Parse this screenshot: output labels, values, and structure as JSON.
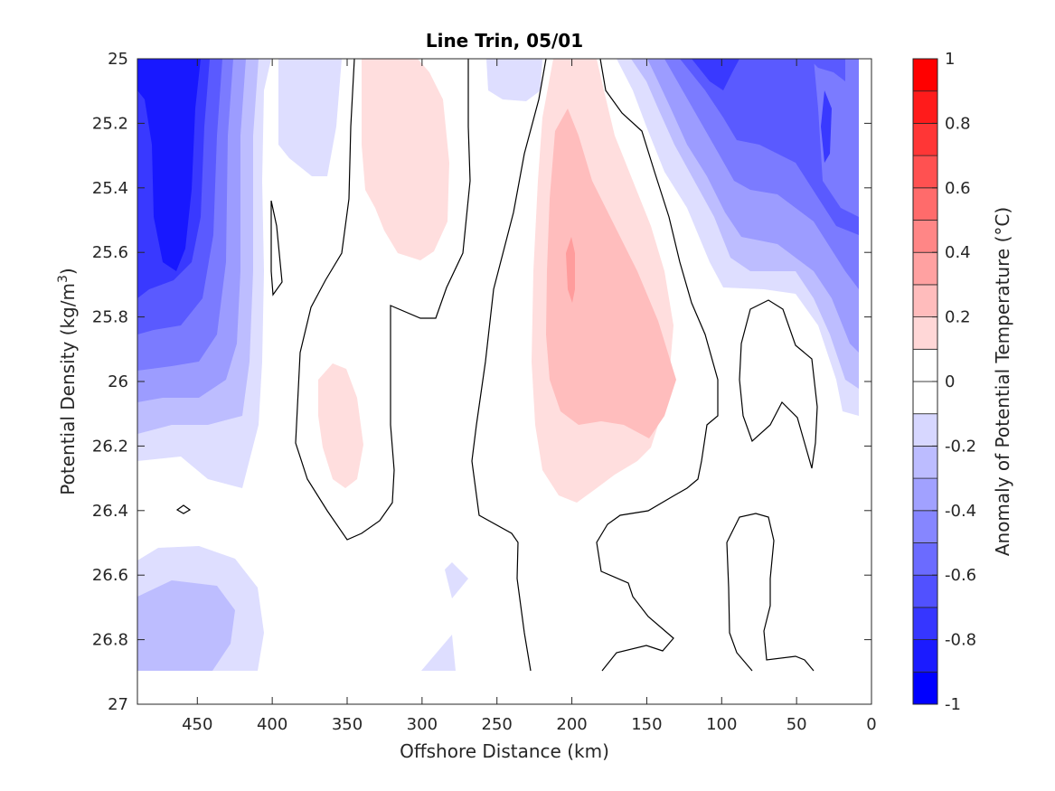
{
  "chart_data": {
    "type": "contour",
    "title": "Line Trin, 05/01",
    "xlabel": "Offshore Distance (km)",
    "ylabel_main": "Potential Density (kg/m",
    "ylabel_sup": "3",
    "ylabel_close": ")",
    "colorbar_label": "Anomaly of Potential Temperature (°C)",
    "xlim": [
      490,
      0
    ],
    "ylim": [
      25,
      27
    ],
    "x_direction": "reversed",
    "y_direction": "reversed",
    "x_ticks": [
      450,
      400,
      350,
      300,
      250,
      200,
      150,
      100,
      50,
      0
    ],
    "x_tick_labels": [
      "450",
      "400",
      "350",
      "300",
      "250",
      "200",
      "150",
      "100",
      "50",
      "0"
    ],
    "y_ticks": [
      25,
      25.2,
      25.4,
      25.6,
      25.8,
      26,
      26.2,
      26.4,
      26.6,
      26.8,
      27
    ],
    "y_tick_labels": [
      "25",
      "25.2",
      "25.4",
      "25.6",
      "25.8",
      "26",
      "26.2",
      "26.4",
      "26.6",
      "26.8",
      "27"
    ],
    "clim": [
      -1,
      1
    ],
    "colorbar_ticks": [
      1,
      0.8,
      0.6,
      0.4,
      0.2,
      0,
      -0.2,
      -0.4,
      -0.6,
      -0.8,
      -1
    ],
    "colorbar_tick_labels": [
      "1",
      "0.8",
      "0.6",
      "0.4",
      "0.2",
      "0",
      "-0.2",
      "-0.4",
      "-0.6",
      "-0.8",
      "-1"
    ],
    "contour_levels": [
      -1,
      -0.9,
      -0.8,
      -0.7,
      -0.6,
      -0.5,
      -0.4,
      -0.3,
      -0.2,
      -0.1,
      0,
      0.1,
      0.2,
      0.3,
      0.4,
      0.5,
      0.6,
      0.7,
      0.8,
      0.9,
      1
    ],
    "zero_contour_color": "#000000",
    "colormap": "blue-white-red"
  }
}
